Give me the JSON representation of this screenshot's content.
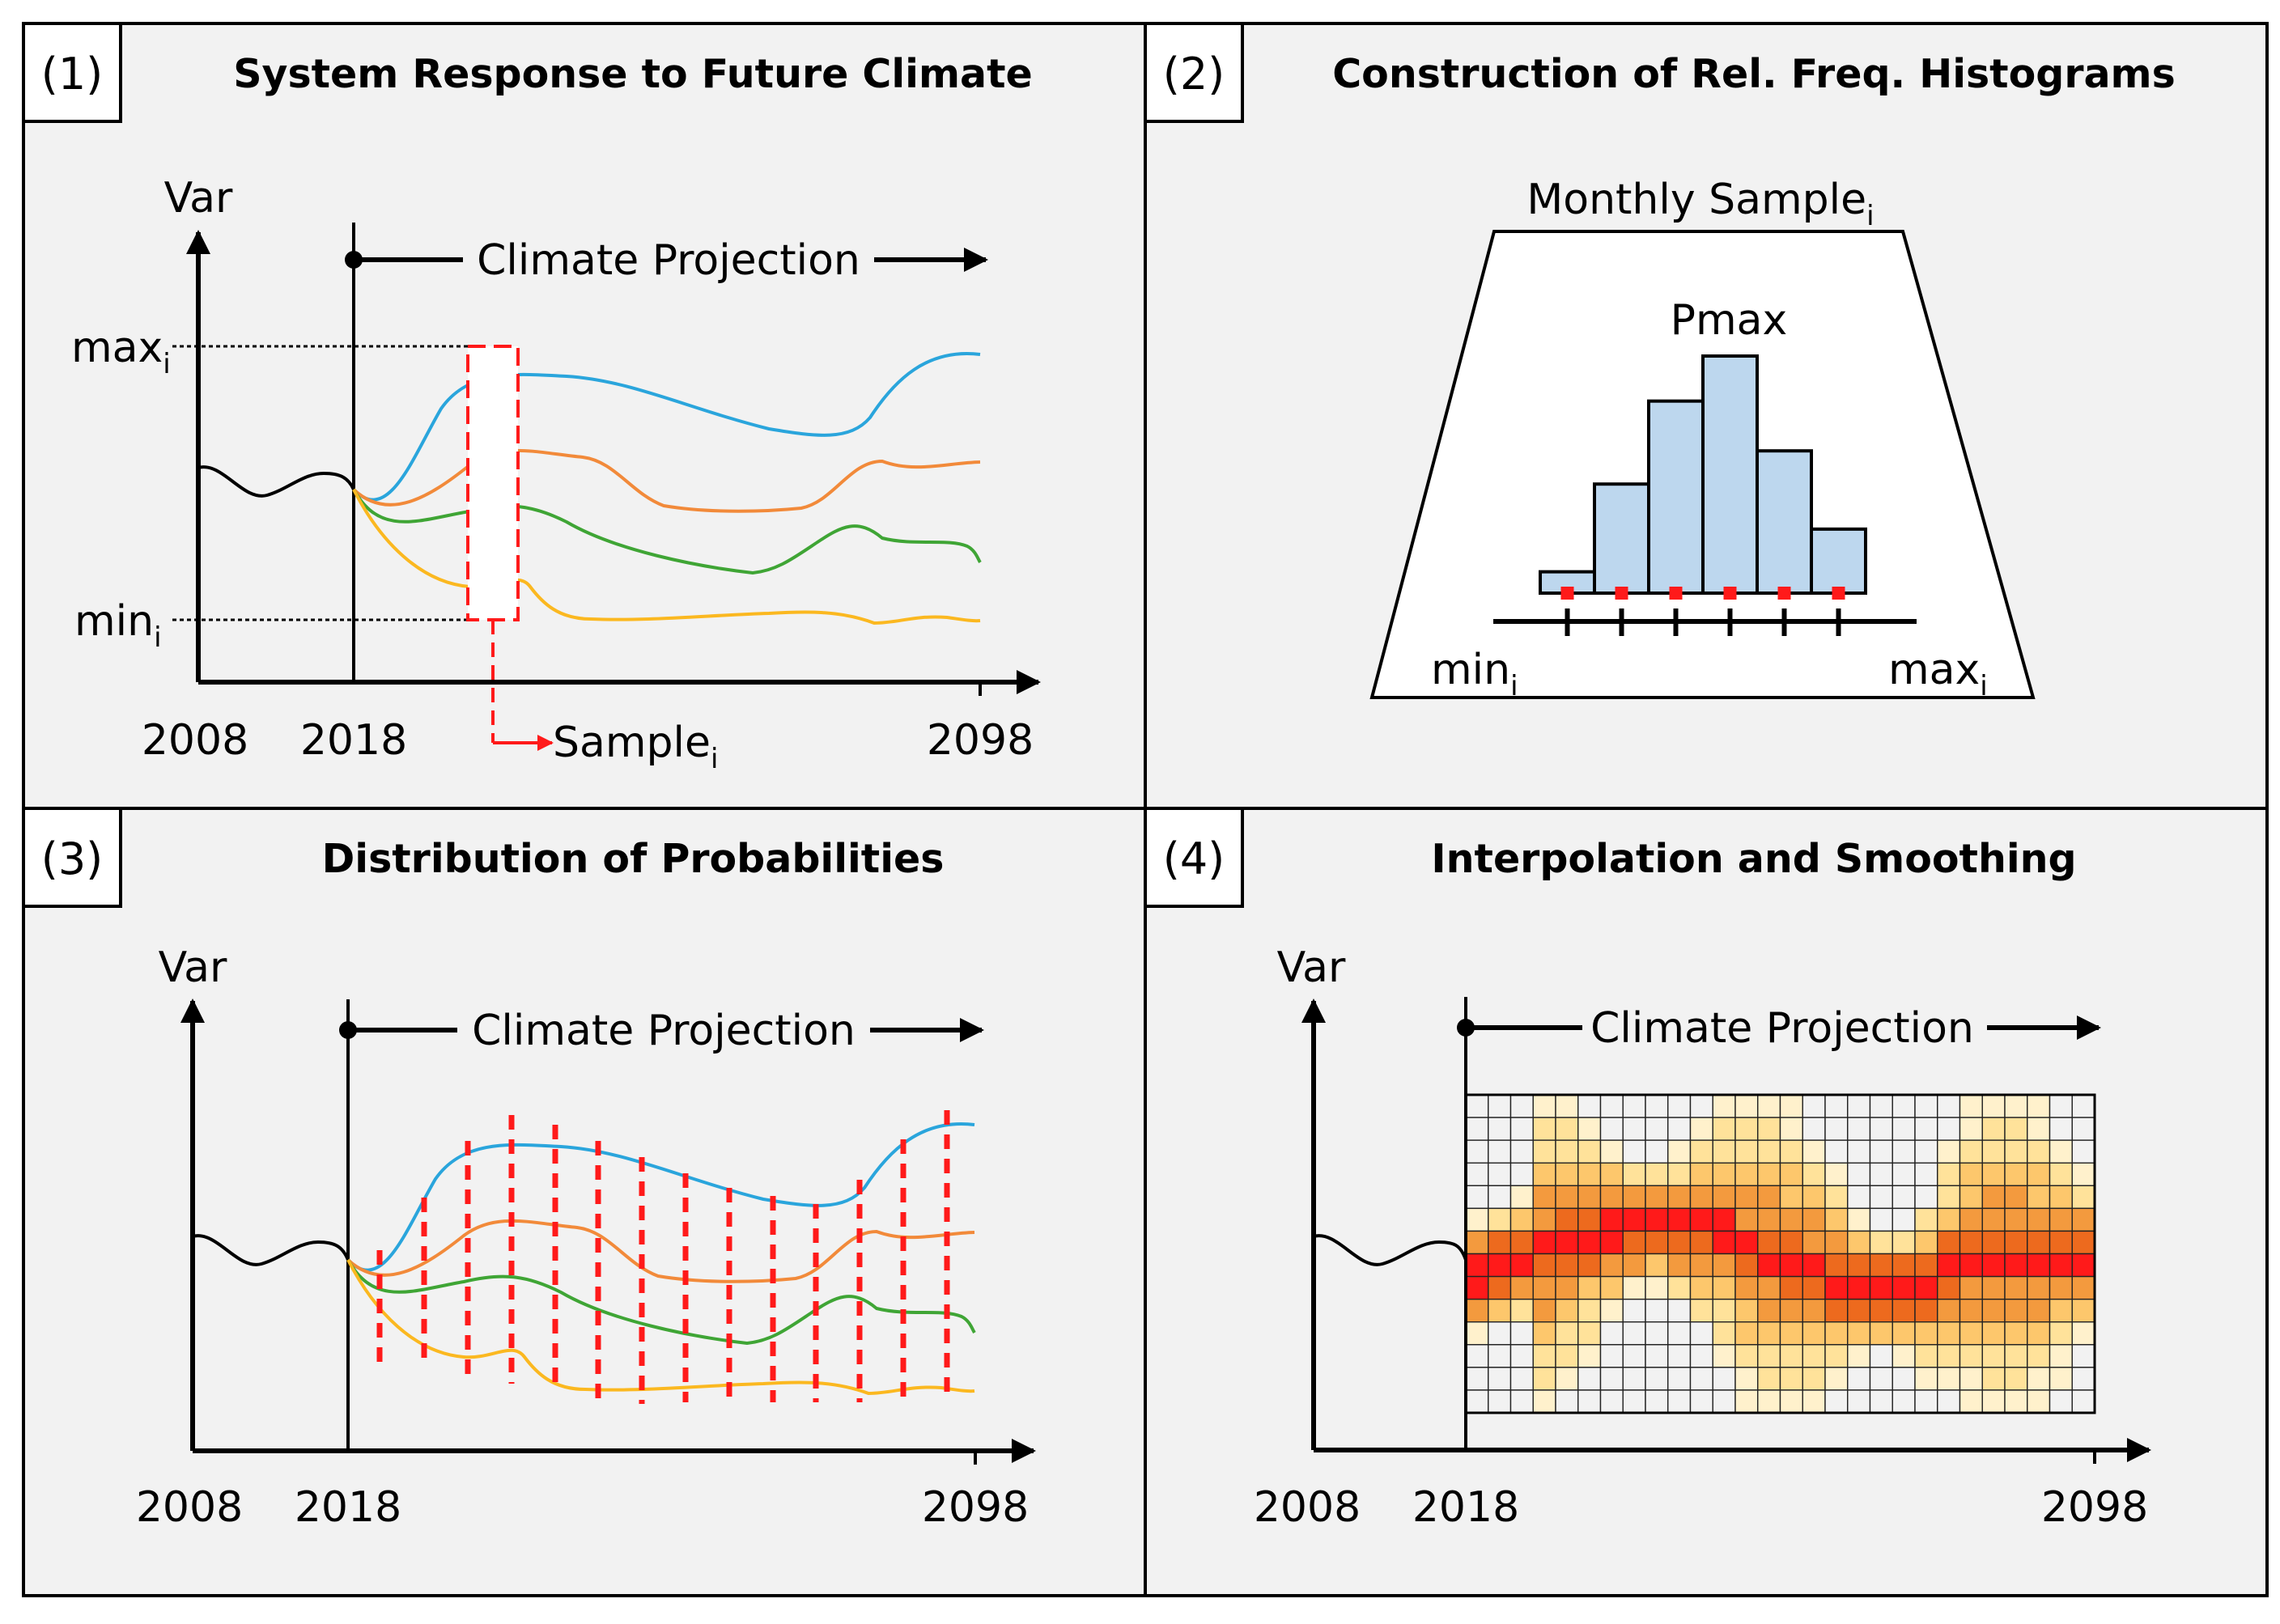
{
  "panels": {
    "p1": {
      "number": "(1)",
      "title": "System Response to Future Climate",
      "y_label": "Var",
      "projection_label": "Climate Projection",
      "max_label": "max",
      "min_label": "min",
      "sample_label": "Sample",
      "subscript": "i",
      "x_ticks": [
        "2008",
        "2018",
        "2098"
      ]
    },
    "p2": {
      "number": "(2)",
      "title": "Construction of Rel. Freq. Histograms",
      "sample_label": "Monthly Sample",
      "subscript": "i",
      "peak_label": "Pmax",
      "min_label": "min",
      "max_label": "max",
      "histogram_relative_heights": [
        0.09,
        0.46,
        0.81,
        1.0,
        0.6,
        0.27
      ]
    },
    "p3": {
      "number": "(3)",
      "title": "Distribution of Probabilities",
      "y_label": "Var",
      "projection_label": "Climate Projection",
      "x_ticks": [
        "2008",
        "2018",
        "2098"
      ]
    },
    "p4": {
      "number": "(4)",
      "title": "Interpolation and Smoothing",
      "y_label": "Var",
      "projection_label": "Climate Projection",
      "x_ticks": [
        "2008",
        "2018",
        "2098"
      ]
    }
  },
  "colors": {
    "blue": "#2aa5dc",
    "orange": "#f28a3a",
    "green": "#3fa535",
    "yellow": "#fbb820",
    "red": "#ff1a1a",
    "hist_fill": "#bdd7ee",
    "heat_scale": [
      "#f2f2f2",
      "#fff1cc",
      "#ffe29a",
      "#fdc76c",
      "#f39a3e",
      "#ed6a1e",
      "#ff1a1a"
    ]
  },
  "icons": [
    "arrow-right-icon",
    "arrow-up-icon",
    "dot-icon"
  ]
}
